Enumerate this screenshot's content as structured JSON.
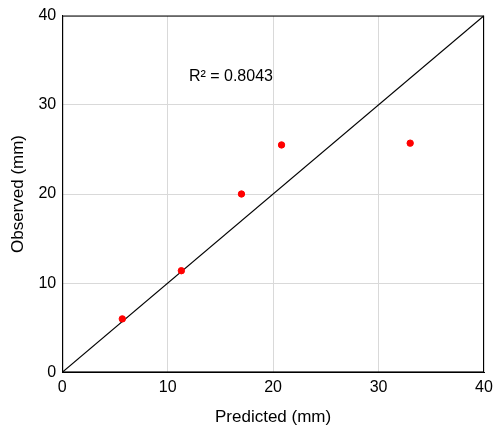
{
  "chart_data": {
    "type": "scatter",
    "x_label": "Predicted (mm)",
    "y_label": "Observed (mm)",
    "annotation": "R² = 0.8043",
    "series": [
      {
        "type": "scatter",
        "color": "#ff0000",
        "marker": "circle",
        "x": [
          5.7,
          11.3,
          17.0,
          20.8,
          33.0
        ],
        "values": [
          6.0,
          11.4,
          20.0,
          25.5,
          25.7
        ]
      },
      {
        "type": "line",
        "color": "#000000",
        "line_style": "solid",
        "x": [
          0,
          40
        ],
        "values": [
          0,
          40
        ]
      }
    ],
    "xlim": [
      0,
      40
    ],
    "xticks": [
      0,
      10,
      20,
      30,
      40
    ],
    "ylim": [
      0,
      40
    ],
    "yticks": [
      0,
      10,
      20,
      30,
      40
    ],
    "grid": true
  }
}
